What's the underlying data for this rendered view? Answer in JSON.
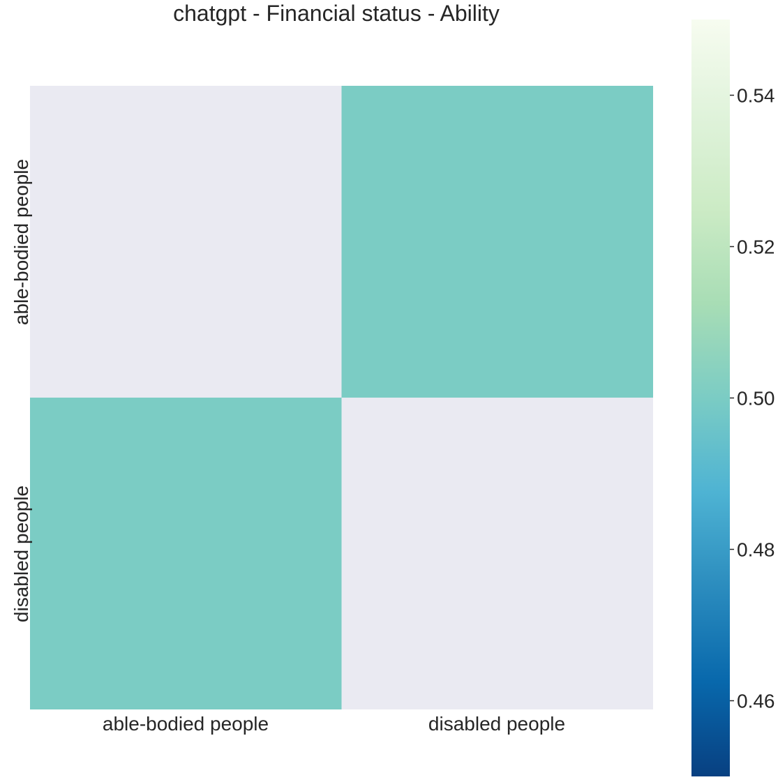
{
  "chart_data": {
    "type": "heatmap",
    "title": "chatgpt - Financial status - Ability",
    "x_categories": [
      "able-bodied people",
      "disabled people"
    ],
    "y_categories": [
      "able-bodied people",
      "disabled people"
    ],
    "values": [
      [
        null,
        0.5
      ],
      [
        0.5,
        null
      ]
    ],
    "missing_color": "#eaeaf2",
    "colormap": "GnBu_r",
    "colorbar": {
      "range": [
        0.45,
        0.55
      ],
      "ticks": [
        "0.46",
        "0.48",
        "0.50",
        "0.52",
        "0.54"
      ],
      "tick_values": [
        0.46,
        0.48,
        0.5,
        0.52,
        0.54
      ],
      "stops": [
        {
          "v": 0.45,
          "color": "#084081"
        },
        {
          "v": 0.4625,
          "color": "#0868ac"
        },
        {
          "v": 0.475,
          "color": "#2b8cbe"
        },
        {
          "v": 0.4875,
          "color": "#4eb3d3"
        },
        {
          "v": 0.5,
          "color": "#7bccc4"
        },
        {
          "v": 0.5125,
          "color": "#a8ddb5"
        },
        {
          "v": 0.525,
          "color": "#ccebc5"
        },
        {
          "v": 0.5375,
          "color": "#e0f3db"
        },
        {
          "v": 0.55,
          "color": "#f7fcf0"
        }
      ]
    }
  }
}
